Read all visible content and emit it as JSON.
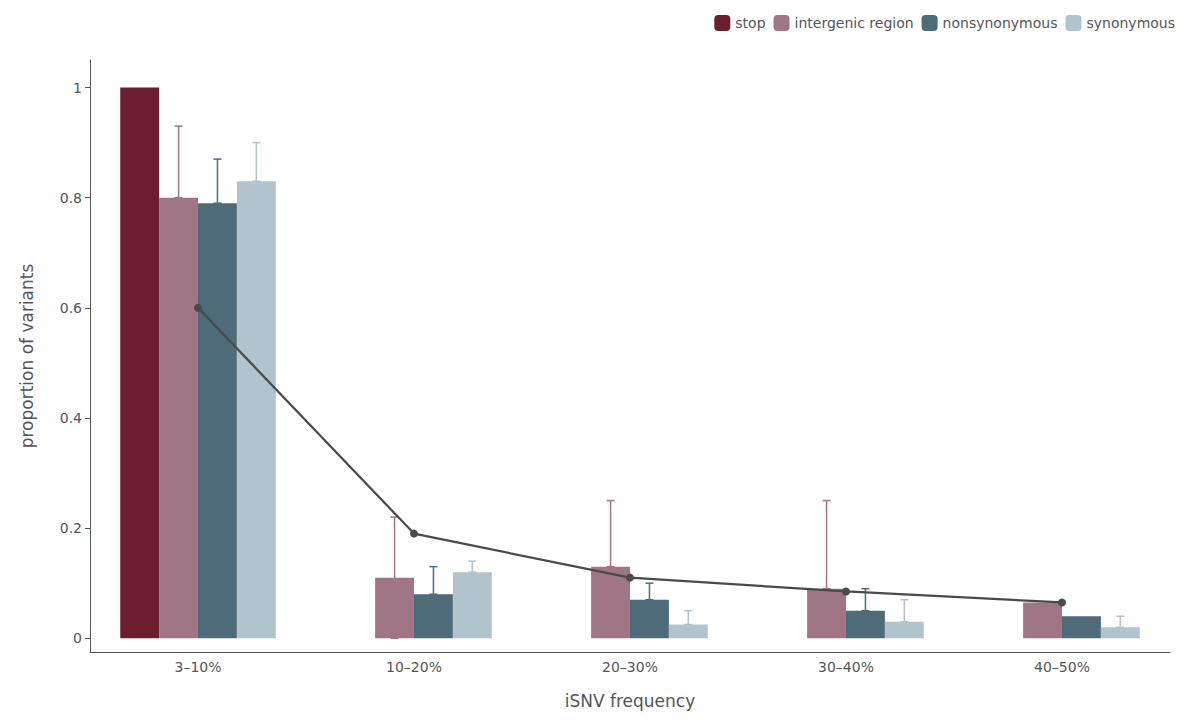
{
  "chart_data": {
    "type": "bar",
    "xlabel": "iSNV frequency",
    "ylabel": "proportion of variants",
    "categories": [
      "3–10%",
      "10–20%",
      "20–30%",
      "30–40%",
      "40–50%"
    ],
    "series": [
      {
        "name": "stop",
        "color": "#6b1f2e",
        "values": [
          1.0,
          0.0,
          0.0,
          0.0,
          0.0
        ],
        "yerr_upper": [
          0.0,
          0.0,
          0.0,
          0.0,
          0.0
        ],
        "yerr_lower": [
          0.0,
          0.0,
          0.0,
          0.0,
          0.0
        ]
      },
      {
        "name": "intergenic region",
        "color": "#a07585",
        "values": [
          0.8,
          0.11,
          0.13,
          0.09,
          0.065
        ],
        "yerr_upper": [
          0.13,
          0.11,
          0.12,
          0.16,
          0.0
        ],
        "yerr_lower": [
          0.0,
          0.11,
          0.0,
          0.0,
          0.0
        ]
      },
      {
        "name": "nonsynonymous",
        "color": "#4d6b78",
        "values": [
          0.79,
          0.08,
          0.07,
          0.05,
          0.04
        ],
        "yerr_upper": [
          0.08,
          0.05,
          0.03,
          0.04,
          0.0
        ],
        "yerr_lower": [
          0.0,
          0.0,
          0.0,
          0.0,
          0.0
        ]
      },
      {
        "name": "synonymous",
        "color": "#afc4cc",
        "values": [
          0.83,
          0.12,
          0.025,
          0.03,
          0.02
        ],
        "yerr_upper": [
          0.07,
          0.02,
          0.025,
          0.04,
          0.02
        ],
        "yerr_lower": [
          0.0,
          0.0,
          0.0,
          0.0,
          0.0
        ]
      },
      {
        "type": "line",
        "color": "#4a4a4a",
        "marker": "circle",
        "values": [
          0.6,
          0.19,
          0.11,
          0.085,
          0.065
        ]
      }
    ],
    "ylim": [
      -0.025,
      1.05
    ],
    "yticks": [
      0,
      0.2,
      0.4,
      0.6,
      0.8,
      1
    ],
    "grid": false,
    "legend": "upper right"
  }
}
